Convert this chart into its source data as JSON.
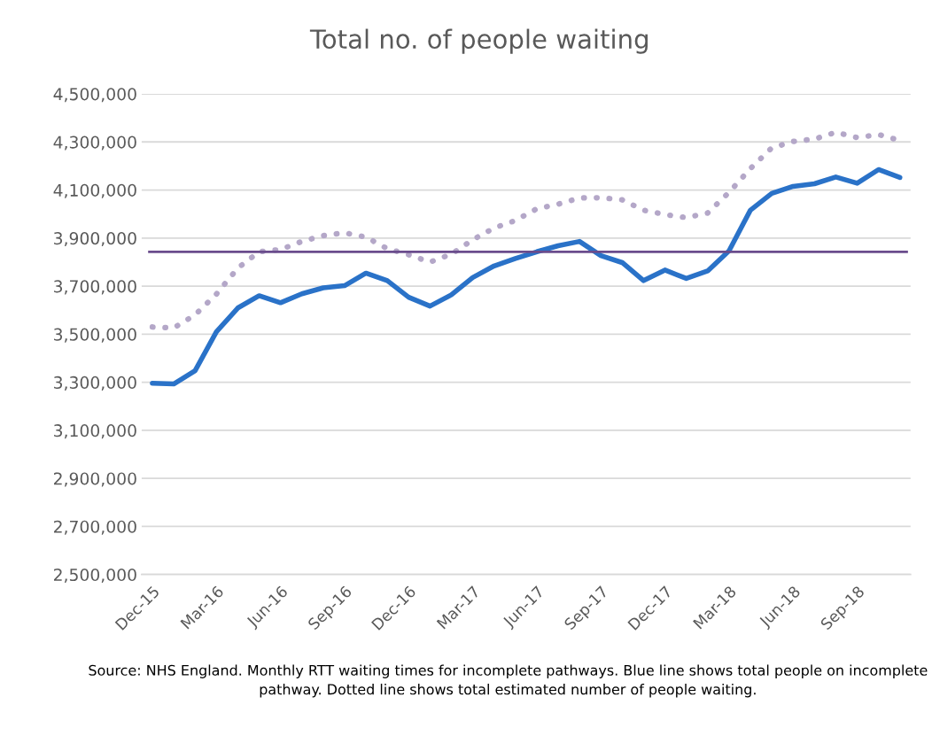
{
  "chart_data": {
    "type": "line",
    "title": "Total no. of people waiting",
    "categories": [
      "Dec-15",
      null,
      null,
      "Mar-16",
      null,
      null,
      "Jun-16",
      null,
      null,
      "Sep-16",
      null,
      null,
      "Dec-16",
      null,
      null,
      "Mar-17",
      null,
      null,
      "Jun-17",
      null,
      null,
      "Sep-17",
      null,
      null,
      "Dec-17",
      null,
      null,
      "Mar-18",
      null,
      null,
      "Jun-18",
      null,
      null,
      "Sep-18",
      null,
      null
    ],
    "series": [
      {
        "color": "#b4a7c8",
        "line_style": "dotted",
        "values": [
          3530000,
          3526000,
          3580000,
          3667000,
          3775000,
          3843000,
          3852000,
          3886000,
          3910000,
          3922000,
          3904000,
          3856000,
          3831000,
          3800000,
          3833000,
          3893000,
          3942000,
          3973000,
          4022000,
          4041000,
          4067000,
          4068000,
          4059000,
          4016000,
          3998000,
          3985000,
          4004000,
          4090000,
          4189000,
          4275000,
          4302000,
          4312000,
          4340000,
          4318000,
          4331000,
          4306000
        ]
      },
      {
        "color": "#2a72c8",
        "line_style": "solid",
        "values": [
          3296000,
          3293000,
          3348000,
          3510000,
          3609000,
          3660000,
          3631000,
          3668000,
          3693000,
          3702000,
          3754000,
          3723000,
          3654000,
          3617000,
          3664000,
          3736000,
          3784000,
          3815000,
          3843000,
          3868000,
          3886000,
          3827000,
          3798000,
          3723000,
          3767000,
          3732000,
          3763000,
          3847000,
          4016000,
          4086000,
          4115000,
          4126000,
          4154000,
          4128000,
          4185000,
          4152000
        ]
      }
    ],
    "ref_lines": [
      {
        "axis": "y",
        "value": 3843000,
        "color": "#6a4c8c",
        "line_style": "solid"
      }
    ],
    "ylim": [
      2500000,
      4500000
    ],
    "yticks": [
      {
        "value": 2500000,
        "label": "2,500,000"
      },
      {
        "value": 2700000,
        "label": "2,700,000"
      },
      {
        "value": 2900000,
        "label": "2,900,000"
      },
      {
        "value": 3100000,
        "label": "3,100,000"
      },
      {
        "value": 3300000,
        "label": "3,300,000"
      },
      {
        "value": 3500000,
        "label": "3,500,000"
      },
      {
        "value": 3700000,
        "label": "3,700,000"
      },
      {
        "value": 3900000,
        "label": "3,900,000"
      },
      {
        "value": 4100000,
        "label": "4,100,000"
      },
      {
        "value": 4300000,
        "label": "4,300,000"
      },
      {
        "value": 4500000,
        "label": "4,500,000"
      }
    ],
    "grid": "y",
    "legend": false,
    "marker": "none",
    "annotations": [
      "Source: NHS England. Monthly RTT waiting times for incomplete pathways. Blue line shows total people on incomplete pathway. Dotted line shows total estimated number of people waiting."
    ]
  }
}
